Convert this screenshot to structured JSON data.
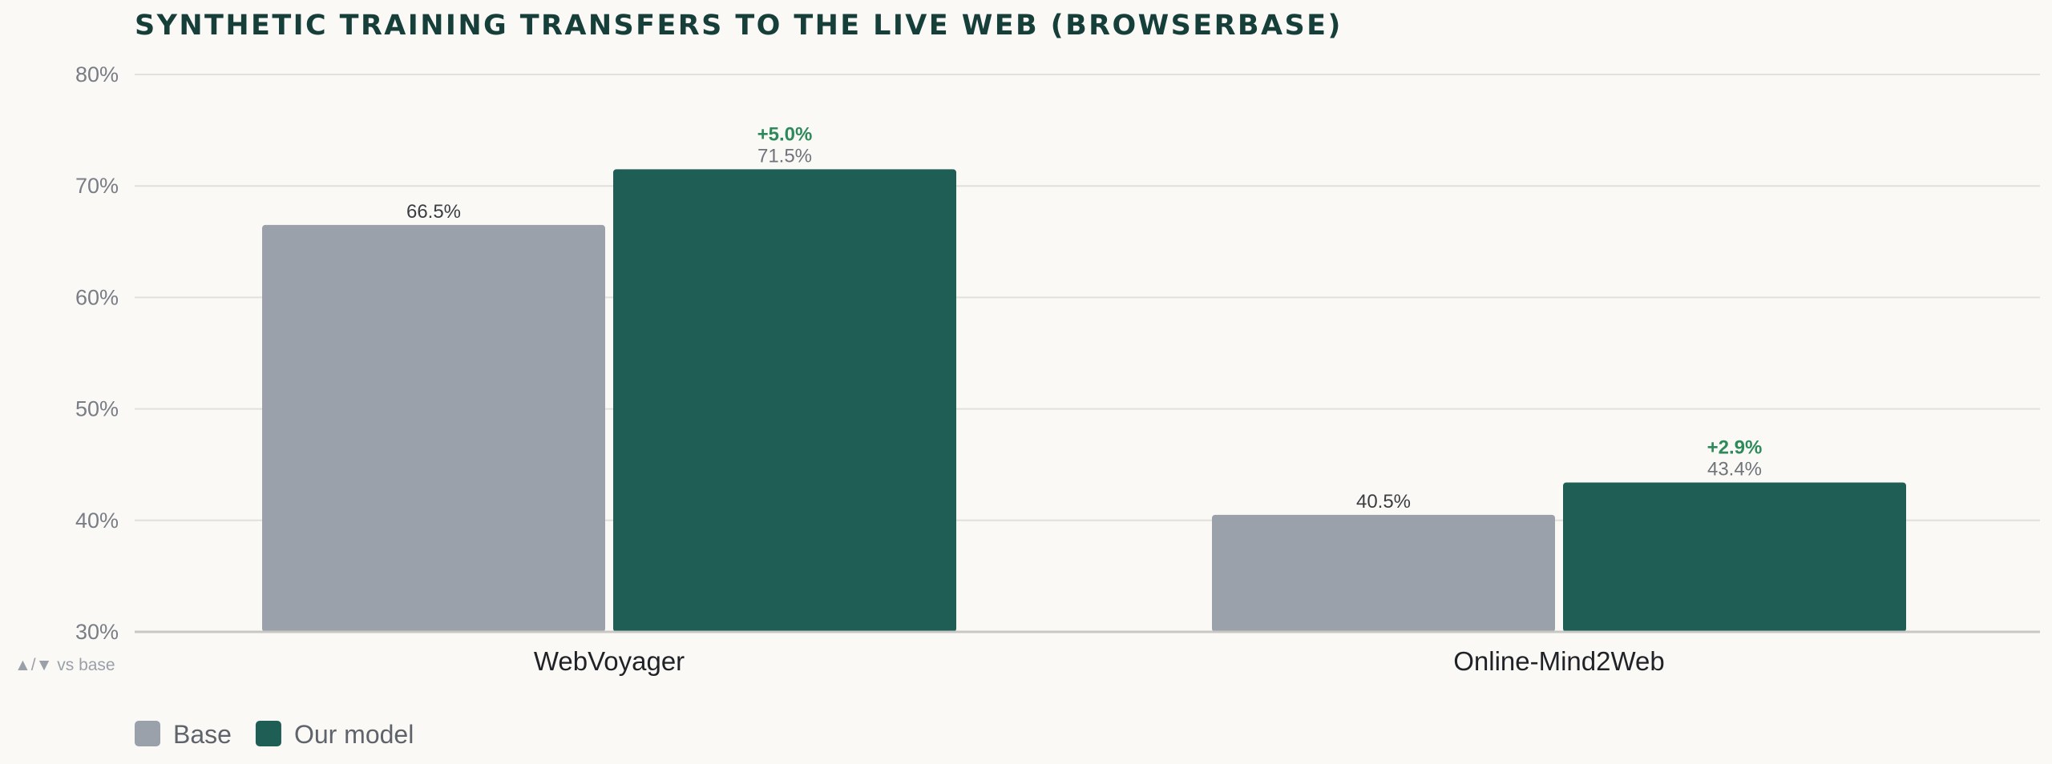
{
  "chart_data": {
    "type": "bar",
    "title": "SYNTHETIC TRAINING TRANSFERS TO THE LIVE WEB (BROWSERBASE)",
    "categories": [
      "WebVoyager",
      "Online-Mind2Web"
    ],
    "series": [
      {
        "name": "Base",
        "color": "#9ba1aa",
        "values": [
          66.5,
          40.5
        ],
        "labels": [
          "66.5%",
          "40.5%"
        ]
      },
      {
        "name": "Our model",
        "color": "#1f5e55",
        "values": [
          71.5,
          43.4
        ],
        "labels": [
          "71.5%",
          "43.4%"
        ]
      }
    ],
    "deltas": [
      "+5.0%",
      "+2.9%"
    ],
    "delta_color": "#2e8a5a",
    "ylim": [
      30,
      80
    ],
    "yticks": [
      30,
      40,
      50,
      60,
      70,
      80
    ],
    "ytick_labels": [
      "30%",
      "40%",
      "50%",
      "60%",
      "70%",
      "80%"
    ],
    "footnote": "▲/▼ vs base",
    "grid": true,
    "legend_position": "bottom-left",
    "xlabel": "",
    "ylabel": ""
  }
}
